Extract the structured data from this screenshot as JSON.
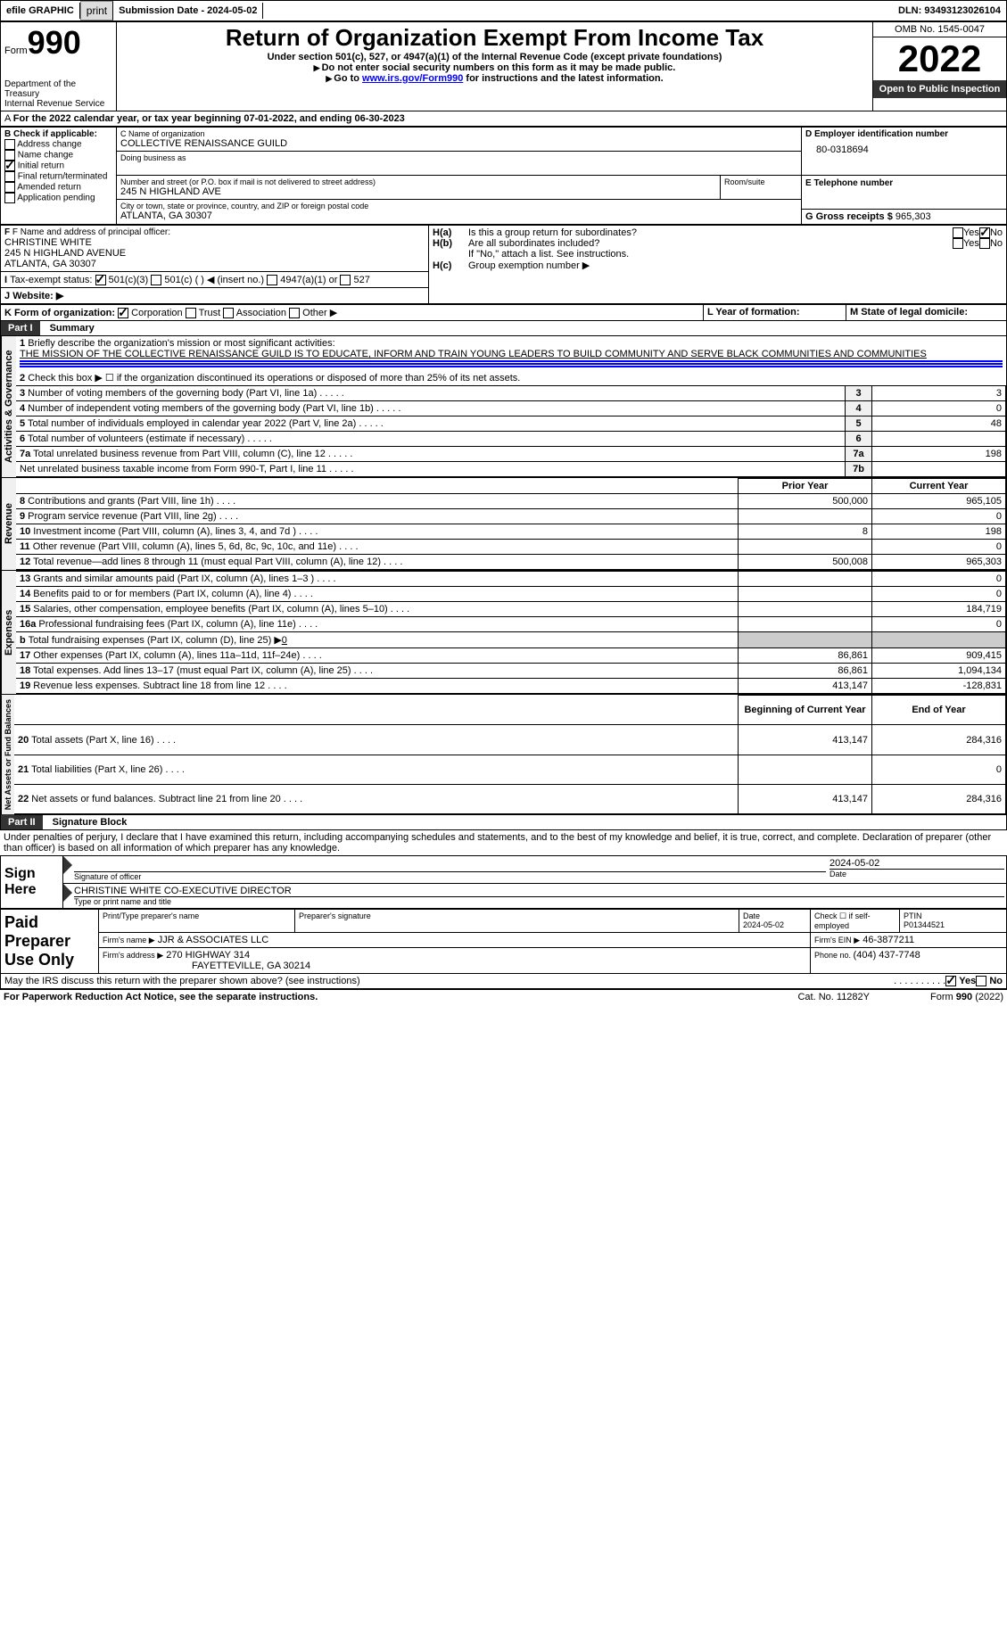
{
  "header_bar": {
    "efile": "efile GRAPHIC",
    "print": "print",
    "sub_date_label": "Submission Date - ",
    "sub_date": "2024-05-02",
    "dln_label": "DLN: ",
    "dln": "93493123026104"
  },
  "title_block": {
    "form_label": "Form",
    "form_num": "990",
    "dept": "Department of the Treasury\nInternal Revenue Service",
    "title": "Return of Organization Exempt From Income Tax",
    "sub1": "Under section 501(c), 527, or 4947(a)(1) of the Internal Revenue Code (except private foundations)",
    "sub2": "Do not enter social security numbers on this form as it may be made public.",
    "sub3_pre": "Go to ",
    "sub3_link": "www.irs.gov/Form990",
    "sub3_post": " for instructions and the latest information.",
    "omb": "OMB No. 1545-0047",
    "year": "2022",
    "open": "Open to Public Inspection"
  },
  "period": {
    "text": "For the 2022 calendar year, or tax year beginning ",
    "begin": "07-01-2022",
    "mid": ", and ending ",
    "end": "06-30-2023"
  },
  "block_b": {
    "label": "B Check if applicable:",
    "opts": [
      "Address change",
      "Name change",
      "Initial return",
      "Final return/terminated",
      "Amended return",
      "Application pending"
    ],
    "checked_idx": 2
  },
  "block_c": {
    "name_label": "C Name of organization",
    "name": "COLLECTIVE RENAISSANCE GUILD",
    "dba_label": "Doing business as",
    "addr_label": "Number and street (or P.O. box if mail is not delivered to street address)",
    "room_label": "Room/suite",
    "addr": "245 N HIGHLAND AVE",
    "city_label": "City or town, state or province, country, and ZIP or foreign postal code",
    "city": "ATLANTA, GA  30307"
  },
  "block_d": {
    "label": "D Employer identification number",
    "val": "80-0318694"
  },
  "block_e": {
    "label": "E Telephone number",
    "val": ""
  },
  "block_g": {
    "label": "G Gross receipts $ ",
    "val": "965,303"
  },
  "block_f": {
    "label": "F Name and address of principal officer:",
    "name": "CHRISTINE WHITE",
    "addr": "245 N HIGHLAND AVENUE",
    "city": "ATLANTA, GA  30307"
  },
  "block_h": {
    "a": "Is this a group return for subordinates?",
    "b": "Are all subordinates included?",
    "note": "If \"No,\" attach a list. See instructions.",
    "c": "Group exemption number ▶",
    "yes": "Yes",
    "no": "No",
    "ha": "H(a)",
    "hb": "H(b)",
    "hc": "H(c)"
  },
  "block_i": {
    "label": "Tax-exempt status:",
    "opts": [
      "501(c)(3)",
      "501(c) (  ) ◀ (insert no.)",
      "4947(a)(1) or",
      "527"
    ]
  },
  "block_j": {
    "label": "Website: ▶"
  },
  "block_k": {
    "label": "K Form of organization:",
    "opts": [
      "Corporation",
      "Trust",
      "Association",
      "Other ▶"
    ]
  },
  "block_l": {
    "label": "L Year of formation:"
  },
  "block_m": {
    "label": "M State of legal domicile:"
  },
  "part1": {
    "header": "Part I",
    "title": "Summary",
    "l1": "Briefly describe the organization's mission or most significant activities:",
    "mission": "THE MISSION OF THE COLLECTIVE RENAISSANCE GUILD IS TO EDUCATE, INFORM AND TRAIN YOUNG LEADERS TO BUILD COMMUNITY AND SERVE BLACK COMMUNITIES AND COMMUNITIES",
    "l2": "Check this box ▶ ☐ if the organization discontinued its operations or disposed of more than 25% of its net assets.",
    "section_labels": {
      "ag": "Activities & Governance",
      "rev": "Revenue",
      "exp": "Expenses",
      "na": "Net Assets or Fund Balances"
    },
    "rows_ag": [
      {
        "n": "3",
        "t": "Number of voting members of the governing body (Part VI, line 1a)",
        "box": "3",
        "v": "3"
      },
      {
        "n": "4",
        "t": "Number of independent voting members of the governing body (Part VI, line 1b)",
        "box": "4",
        "v": "0"
      },
      {
        "n": "5",
        "t": "Total number of individuals employed in calendar year 2022 (Part V, line 2a)",
        "box": "5",
        "v": "48"
      },
      {
        "n": "6",
        "t": "Total number of volunteers (estimate if necessary)",
        "box": "6",
        "v": ""
      },
      {
        "n": "7a",
        "t": "Total unrelated business revenue from Part VIII, column (C), line 12",
        "box": "7a",
        "v": "198"
      },
      {
        "n": "",
        "t": "Net unrelated business taxable income from Form 990-T, Part I, line 11",
        "box": "7b",
        "v": ""
      }
    ],
    "col_headers": {
      "prior": "Prior Year",
      "current": "Current Year",
      "bcy": "Beginning of Current Year",
      "eoy": "End of Year"
    },
    "rows_rev": [
      {
        "n": "8",
        "t": "Contributions and grants (Part VIII, line 1h)",
        "p": "500,000",
        "c": "965,105"
      },
      {
        "n": "9",
        "t": "Program service revenue (Part VIII, line 2g)",
        "p": "",
        "c": "0"
      },
      {
        "n": "10",
        "t": "Investment income (Part VIII, column (A), lines 3, 4, and 7d )",
        "p": "8",
        "c": "198"
      },
      {
        "n": "11",
        "t": "Other revenue (Part VIII, column (A), lines 5, 6d, 8c, 9c, 10c, and 11e)",
        "p": "",
        "c": "0"
      },
      {
        "n": "12",
        "t": "Total revenue—add lines 8 through 11 (must equal Part VIII, column (A), line 12)",
        "p": "500,008",
        "c": "965,303"
      }
    ],
    "rows_exp": [
      {
        "n": "13",
        "t": "Grants and similar amounts paid (Part IX, column (A), lines 1–3 )",
        "p": "",
        "c": "0"
      },
      {
        "n": "14",
        "t": "Benefits paid to or for members (Part IX, column (A), line 4)",
        "p": "",
        "c": "0"
      },
      {
        "n": "15",
        "t": "Salaries, other compensation, employee benefits (Part IX, column (A), lines 5–10)",
        "p": "",
        "c": "184,719"
      },
      {
        "n": "16a",
        "t": "Professional fundraising fees (Part IX, column (A), line 11e)",
        "p": "",
        "c": "0"
      },
      {
        "n": "b",
        "t": "Total fundraising expenses (Part IX, column (D), line 25) ▶",
        "p": "shaded",
        "c": "shaded",
        "inline": "0"
      },
      {
        "n": "17",
        "t": "Other expenses (Part IX, column (A), lines 11a–11d, 11f–24e)",
        "p": "86,861",
        "c": "909,415"
      },
      {
        "n": "18",
        "t": "Total expenses. Add lines 13–17 (must equal Part IX, column (A), line 25)",
        "p": "86,861",
        "c": "1,094,134"
      },
      {
        "n": "19",
        "t": "Revenue less expenses. Subtract line 18 from line 12",
        "p": "413,147",
        "c": "-128,831"
      }
    ],
    "rows_na": [
      {
        "n": "20",
        "t": "Total assets (Part X, line 16)",
        "p": "413,147",
        "c": "284,316"
      },
      {
        "n": "21",
        "t": "Total liabilities (Part X, line 26)",
        "p": "",
        "c": "0"
      },
      {
        "n": "22",
        "t": "Net assets or fund balances. Subtract line 21 from line 20",
        "p": "413,147",
        "c": "284,316"
      }
    ]
  },
  "part2": {
    "header": "Part II",
    "title": "Signature Block",
    "decl": "Under penalties of perjury, I declare that I have examined this return, including accompanying schedules and statements, and to the best of my knowledge and belief, it is true, correct, and complete. Declaration of preparer (other than officer) is based on all information of which preparer has any knowledge.",
    "sign_here": "Sign Here",
    "sig_officer": "Signature of officer",
    "sig_date": "2024-05-02",
    "date_label": "Date",
    "officer_name": "CHRISTINE WHITE  CO-EXECUTIVE DIRECTOR",
    "type_name": "Type or print name and title",
    "paid": "Paid Preparer Use Only",
    "prep_name_label": "Print/Type preparer's name",
    "prep_sig_label": "Preparer's signature",
    "prep_date": "2024-05-02",
    "check_se": "Check ☐ if self-employed",
    "ptin_label": "PTIN",
    "ptin": "P01344521",
    "firm_name_label": "Firm's name    ▶",
    "firm_name": "JJR & ASSOCIATES LLC",
    "firm_ein_label": "Firm's EIN ▶",
    "firm_ein": "46-3877211",
    "firm_addr_label": "Firm's address ▶",
    "firm_addr": "270 HIGHWAY 314",
    "firm_city": "FAYETTEVILLE, GA  30214",
    "phone_label": "Phone no. ",
    "phone": "(404) 437-7748",
    "may_irs": "May the IRS discuss this return with the preparer shown above? (see instructions)",
    "yes": "Yes",
    "no": "No"
  },
  "footer": {
    "pra": "For Paperwork Reduction Act Notice, see the separate instructions.",
    "cat": "Cat. No. 11282Y",
    "form": "Form 990 (2022)"
  }
}
